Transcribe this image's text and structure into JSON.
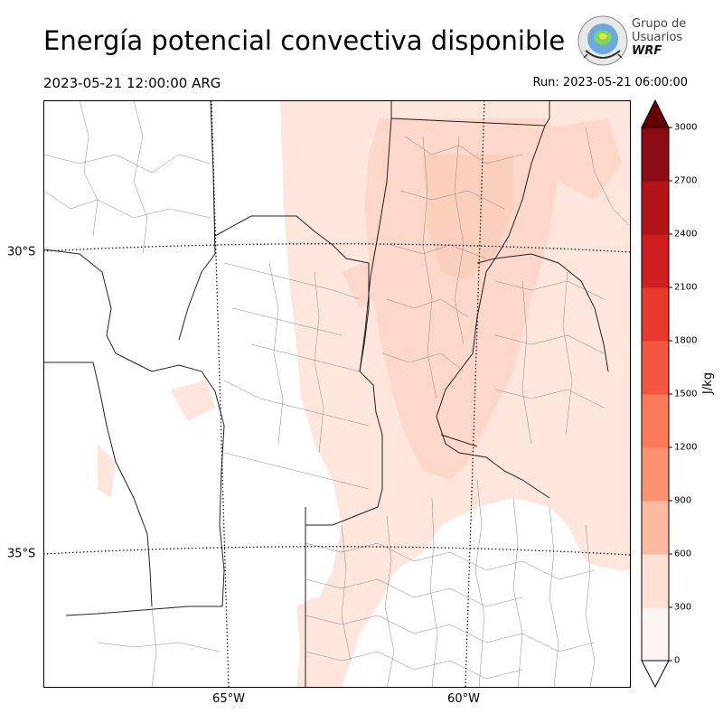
{
  "header": {
    "title": "Energía potencial convectiva disponible",
    "valid_time": "2023-05-21 12:00:00 ARG",
    "run_time": "Run: 2023-05-21 06:00:00"
  },
  "logo": {
    "line1": "Grupo de",
    "line2": "Usuarios",
    "line3": "WRF"
  },
  "map": {
    "lat_labels": [
      "30°S",
      "35°S"
    ],
    "lon_labels": [
      "65°W",
      "60°W"
    ]
  },
  "colorbar": {
    "unit": "J/kg",
    "ticks": [
      "0",
      "300",
      "600",
      "900",
      "1200",
      "1500",
      "1800",
      "2100",
      "2400",
      "2700",
      "3000"
    ],
    "colors": [
      "#fff5f0",
      "#fee0d2",
      "#fcbba1",
      "#fc9272",
      "#fb7a5a",
      "#f4563f",
      "#e8392e",
      "#d01d1f",
      "#b41318",
      "#8c0a13",
      "#670000"
    ],
    "extend_max": true,
    "extend_min": true
  }
}
